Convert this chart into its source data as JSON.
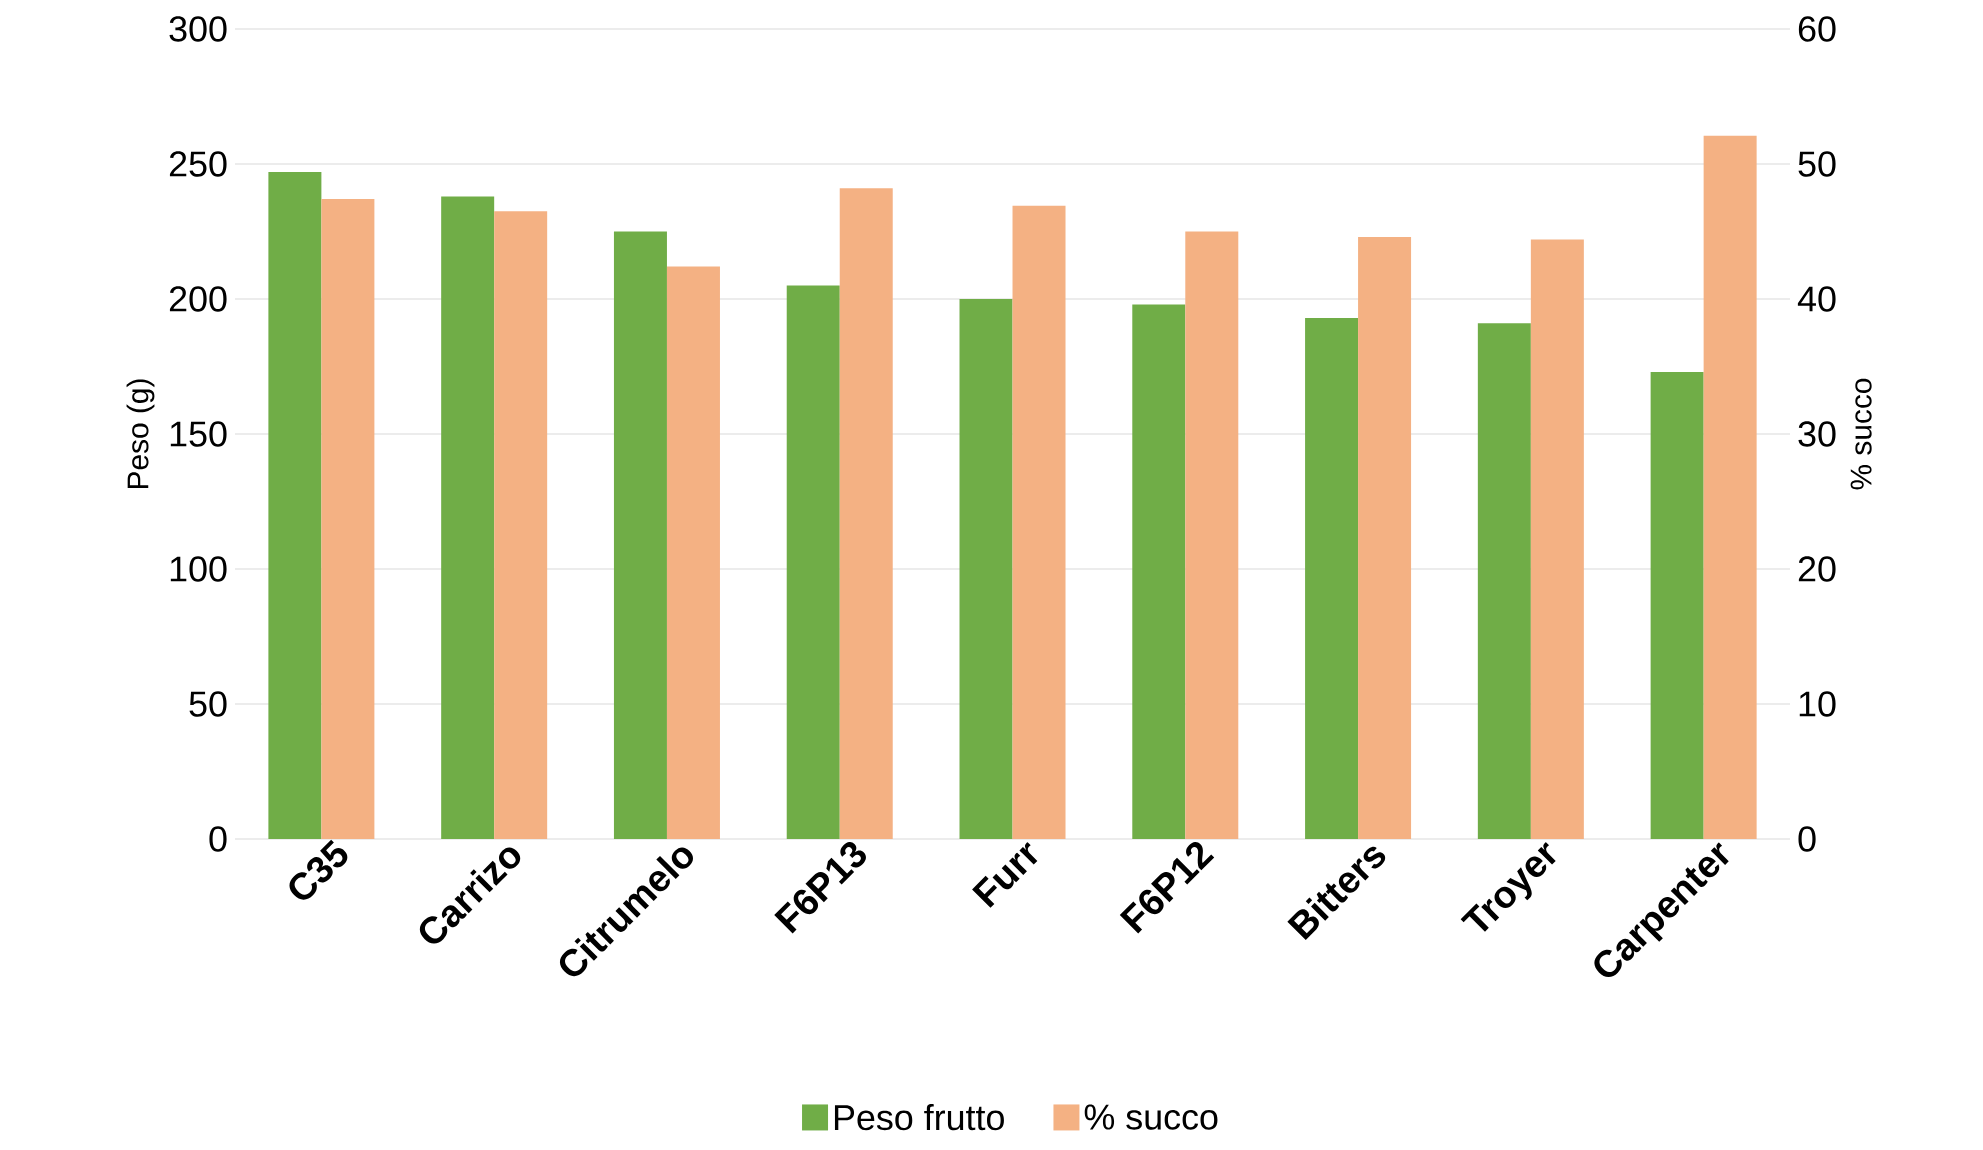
{
  "chart_data": {
    "type": "bar",
    "ylabel": "Peso (g)",
    "y2label": "% succo",
    "categories": [
      "C35",
      "Carrizo",
      "Citrumelo",
      "F6P13",
      "Furr",
      "F6P12",
      "Bitters",
      "Troyer",
      "Carpenter"
    ],
    "series": [
      {
        "name": "Peso frutto",
        "color": "#70ad47",
        "values": [
          247,
          238,
          225,
          205,
          200,
          198,
          193,
          191,
          173
        ]
      },
      {
        "name": "% succo",
        "color": "#f4b183",
        "axis": "y2",
        "values": [
          47.4,
          46.5,
          42.4,
          48.2,
          46.9,
          45.0,
          44.6,
          44.4,
          52.1
        ]
      }
    ],
    "ylim": [
      0,
      300
    ],
    "yticks": [
      0,
      50,
      100,
      150,
      200,
      250,
      300
    ],
    "y2lim": [
      0,
      60
    ],
    "y2ticks": [
      0,
      10,
      20,
      30,
      40,
      50,
      60
    ],
    "grid": "y",
    "legend": "bottom"
  }
}
